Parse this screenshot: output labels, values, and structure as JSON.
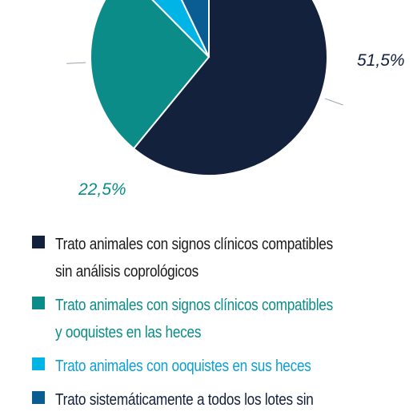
{
  "chart_data": {
    "type": "pie",
    "series": [
      {
        "values": [
          51.5,
          22.5,
          4.5,
          6.0
        ],
        "colors": [
          "#14213d",
          "#0b8c88",
          "#00b4e6",
          "#0a5d92"
        ]
      }
    ],
    "data_labels": [
      "51,5%",
      "22,5%",
      "",
      ""
    ],
    "label_colors": [
      "#14213d",
      "#0b8c88",
      "",
      ""
    ],
    "legend": [
      {
        "lines": [
          "Trato animales con signos clínicos compatibles",
          "sin análisis coprológicos"
        ],
        "color": "#14213d",
        "text_color": "#1a1a1a"
      },
      {
        "lines": [
          "Trato animales con signos clínicos compatibles",
          "y ooquistes en las heces"
        ],
        "color": "#0b8c88",
        "text_color": "#0b8c88"
      },
      {
        "lines": [
          "Trato animales con ooquistes en sus heces"
        ],
        "color": "#00b4e6",
        "text_color": "#0b9fd4"
      },
      {
        "lines": [
          "Trato sistemáticamente a todos los lotes sin"
        ],
        "color": "#0a5d92",
        "text_color": "#14213d"
      }
    ],
    "legend_placement": "bottom"
  }
}
